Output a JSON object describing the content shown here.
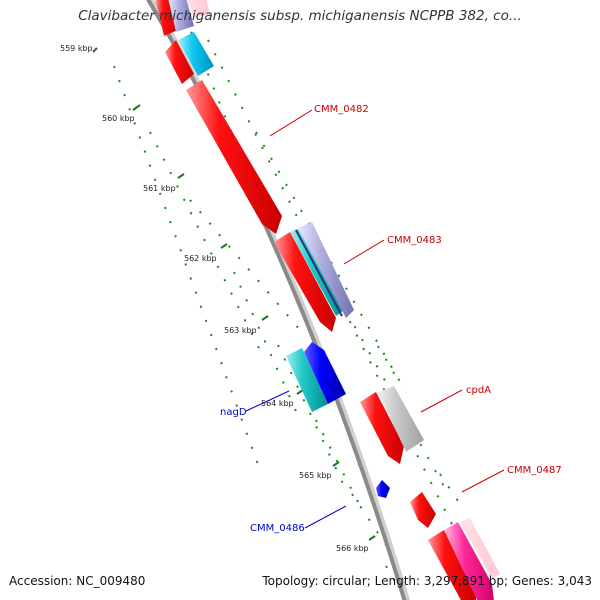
{
  "map": {
    "title": "Clavibacter michiganensis subsp. michiganensis NCPPB 382, co...",
    "accession": "Accession: NC_009480",
    "summary": "Topology: circular; Length: 3,297,891 bp; Genes: 3,043"
  },
  "ticks": [
    {
      "label": "559 kbp"
    },
    {
      "label": "560 kbp"
    },
    {
      "label": "561 kbp"
    },
    {
      "label": "562 kbp"
    },
    {
      "label": "563 kbp"
    },
    {
      "label": "564 kbp"
    },
    {
      "label": "565 kbp"
    },
    {
      "label": "566 kbp"
    }
  ],
  "gene_labels": [
    {
      "label": "CMM_0482",
      "color": "#cc0000"
    },
    {
      "label": "CMM_0483",
      "color": "#cc0000"
    },
    {
      "label": "cpdA",
      "color": "#cc0000"
    },
    {
      "label": "CMM_0487",
      "color": "#cc0000"
    },
    {
      "label": "nagD",
      "color": "#0000cc"
    },
    {
      "label": "CMM_0486",
      "color": "#0000cc"
    }
  ],
  "colors": {
    "backbone": "#8a8a8a",
    "tick_dots": "#1a8a1a",
    "forward_gene": "#ff0000",
    "reverse_gene": "#0000ff",
    "cyan_gene": "#00bcd4",
    "teal_gene": "#20c0c0",
    "grey_gene": "#c0c0c0",
    "magenta_gene": "#ff1493",
    "lavender_gene": "#8080c8"
  }
}
